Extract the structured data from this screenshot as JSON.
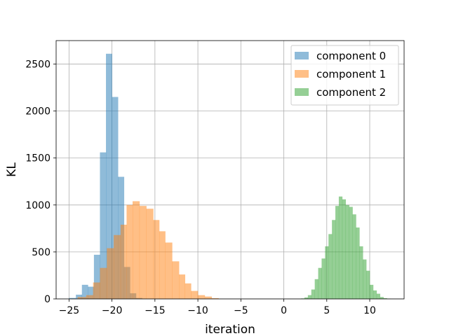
{
  "chart_data": {
    "type": "bar",
    "subtype": "histogram",
    "title": "",
    "xlabel": "iteration",
    "ylabel": "KL",
    "xlim": [
      -26.5,
      14
    ],
    "ylim": [
      0,
      2750
    ],
    "grid": true,
    "legend_position": "top-right",
    "xticks": [
      -25,
      -20,
      -15,
      -10,
      -5,
      0,
      5,
      10
    ],
    "yticks": [
      0,
      500,
      1000,
      1500,
      2000,
      2500
    ],
    "series": [
      {
        "name": "component 0",
        "color": "#1f77b4",
        "alpha": 0.5,
        "bins": [
          {
            "x0": -25.0,
            "x1": -24.2,
            "value": 10
          },
          {
            "x0": -24.2,
            "x1": -23.5,
            "value": 45
          },
          {
            "x0": -23.5,
            "x1": -22.8,
            "value": 150
          },
          {
            "x0": -22.8,
            "x1": -22.1,
            "value": 130
          },
          {
            "x0": -22.1,
            "x1": -21.4,
            "value": 470
          },
          {
            "x0": -21.4,
            "x1": -20.7,
            "value": 1560
          },
          {
            "x0": -20.7,
            "x1": -20.0,
            "value": 2610
          },
          {
            "x0": -20.0,
            "x1": -19.3,
            "value": 2150
          },
          {
            "x0": -19.3,
            "x1": -18.6,
            "value": 1300
          },
          {
            "x0": -18.6,
            "x1": -17.9,
            "value": 340
          },
          {
            "x0": -17.9,
            "x1": -17.2,
            "value": 60
          },
          {
            "x0": -17.2,
            "x1": -16.5,
            "value": 10
          }
        ]
      },
      {
        "name": "component 1",
        "color": "#ff7f0e",
        "alpha": 0.5,
        "bins": [
          {
            "x0": -24.0,
            "x1": -23.0,
            "value": 20
          },
          {
            "x0": -23.0,
            "x1": -22.2,
            "value": 40
          },
          {
            "x0": -22.2,
            "x1": -21.4,
            "value": 175
          },
          {
            "x0": -21.4,
            "x1": -20.6,
            "value": 330
          },
          {
            "x0": -20.6,
            "x1": -19.8,
            "value": 540
          },
          {
            "x0": -19.8,
            "x1": -19.0,
            "value": 680
          },
          {
            "x0": -19.0,
            "x1": -18.3,
            "value": 790
          },
          {
            "x0": -18.3,
            "x1": -17.6,
            "value": 1000
          },
          {
            "x0": -17.6,
            "x1": -16.8,
            "value": 1040
          },
          {
            "x0": -16.8,
            "x1": -16.0,
            "value": 990
          },
          {
            "x0": -16.0,
            "x1": -15.2,
            "value": 960
          },
          {
            "x0": -15.2,
            "x1": -14.5,
            "value": 840
          },
          {
            "x0": -14.5,
            "x1": -13.8,
            "value": 720
          },
          {
            "x0": -13.8,
            "x1": -13.0,
            "value": 600
          },
          {
            "x0": -13.0,
            "x1": -12.2,
            "value": 400
          },
          {
            "x0": -12.2,
            "x1": -11.5,
            "value": 260
          },
          {
            "x0": -11.5,
            "x1": -10.8,
            "value": 165
          },
          {
            "x0": -10.8,
            "x1": -10.0,
            "value": 85
          },
          {
            "x0": -10.0,
            "x1": -9.2,
            "value": 40
          },
          {
            "x0": -9.2,
            "x1": -8.4,
            "value": 25
          },
          {
            "x0": -8.4,
            "x1": -7.6,
            "value": 8
          }
        ]
      },
      {
        "name": "component 2",
        "color": "#2ca02c",
        "alpha": 0.5,
        "bins": [
          {
            "x0": 2.0,
            "x1": 2.4,
            "value": 5
          },
          {
            "x0": 2.4,
            "x1": 2.8,
            "value": 15
          },
          {
            "x0": 2.8,
            "x1": 3.2,
            "value": 40
          },
          {
            "x0": 3.2,
            "x1": 3.6,
            "value": 100
          },
          {
            "x0": 3.6,
            "x1": 4.0,
            "value": 210
          },
          {
            "x0": 4.0,
            "x1": 4.4,
            "value": 330
          },
          {
            "x0": 4.4,
            "x1": 4.8,
            "value": 430
          },
          {
            "x0": 4.8,
            "x1": 5.2,
            "value": 560
          },
          {
            "x0": 5.2,
            "x1": 5.6,
            "value": 690
          },
          {
            "x0": 5.6,
            "x1": 6.0,
            "value": 840
          },
          {
            "x0": 6.0,
            "x1": 6.4,
            "value": 990
          },
          {
            "x0": 6.4,
            "x1": 6.8,
            "value": 1090
          },
          {
            "x0": 6.8,
            "x1": 7.2,
            "value": 1060
          },
          {
            "x0": 7.2,
            "x1": 7.6,
            "value": 1000
          },
          {
            "x0": 7.6,
            "x1": 8.0,
            "value": 980
          },
          {
            "x0": 8.0,
            "x1": 8.4,
            "value": 900
          },
          {
            "x0": 8.4,
            "x1": 8.8,
            "value": 760
          },
          {
            "x0": 8.8,
            "x1": 9.2,
            "value": 560
          },
          {
            "x0": 9.2,
            "x1": 9.6,
            "value": 420
          },
          {
            "x0": 9.6,
            "x1": 10.0,
            "value": 300
          },
          {
            "x0": 10.0,
            "x1": 10.4,
            "value": 150
          },
          {
            "x0": 10.4,
            "x1": 10.8,
            "value": 90
          },
          {
            "x0": 10.8,
            "x1": 11.2,
            "value": 55
          },
          {
            "x0": 11.2,
            "x1": 11.6,
            "value": 20
          },
          {
            "x0": 11.6,
            "x1": 12.0,
            "value": 8
          },
          {
            "x0": 12.0,
            "x1": 12.4,
            "value": 3
          }
        ]
      }
    ]
  }
}
